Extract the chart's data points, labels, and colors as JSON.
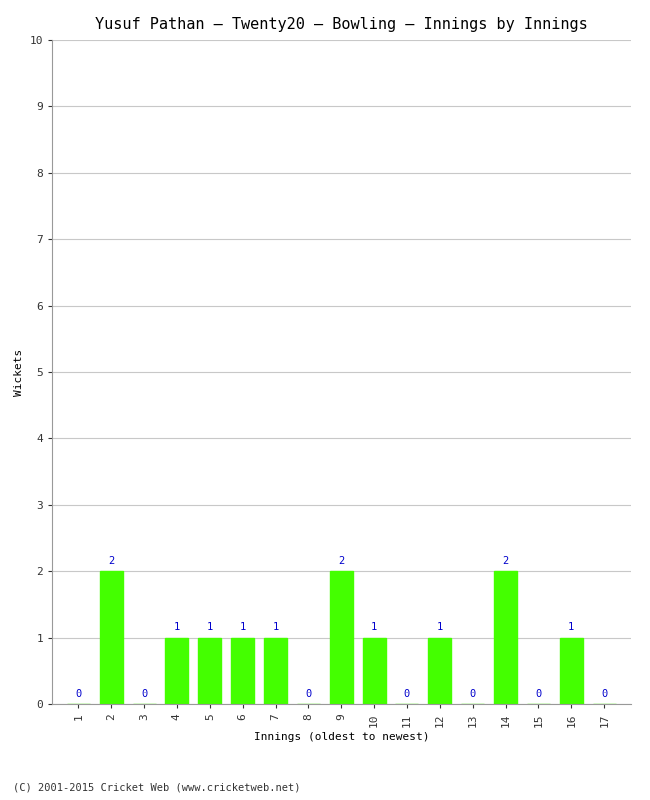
{
  "title": "Yusuf Pathan – Twenty20 – Bowling – Innings by Innings",
  "xlabel": "Innings (oldest to newest)",
  "ylabel": "Wickets",
  "innings": [
    1,
    2,
    3,
    4,
    5,
    6,
    7,
    8,
    9,
    10,
    11,
    12,
    13,
    14,
    15,
    16,
    17
  ],
  "wickets": [
    0,
    2,
    0,
    1,
    1,
    1,
    1,
    0,
    2,
    1,
    0,
    1,
    0,
    2,
    0,
    1,
    0
  ],
  "ylim": [
    0,
    10
  ],
  "yticks": [
    0,
    1,
    2,
    3,
    4,
    5,
    6,
    7,
    8,
    9,
    10
  ],
  "bar_color": "#44ff00",
  "label_color": "#0000cc",
  "background_color": "#ffffff",
  "grid_color": "#c8c8c8",
  "footer": "(C) 2001-2015 Cricket Web (www.cricketweb.net)",
  "title_fontsize": 11,
  "axis_label_fontsize": 8,
  "tick_fontsize": 8,
  "label_fontsize": 7.5,
  "footer_fontsize": 7.5
}
